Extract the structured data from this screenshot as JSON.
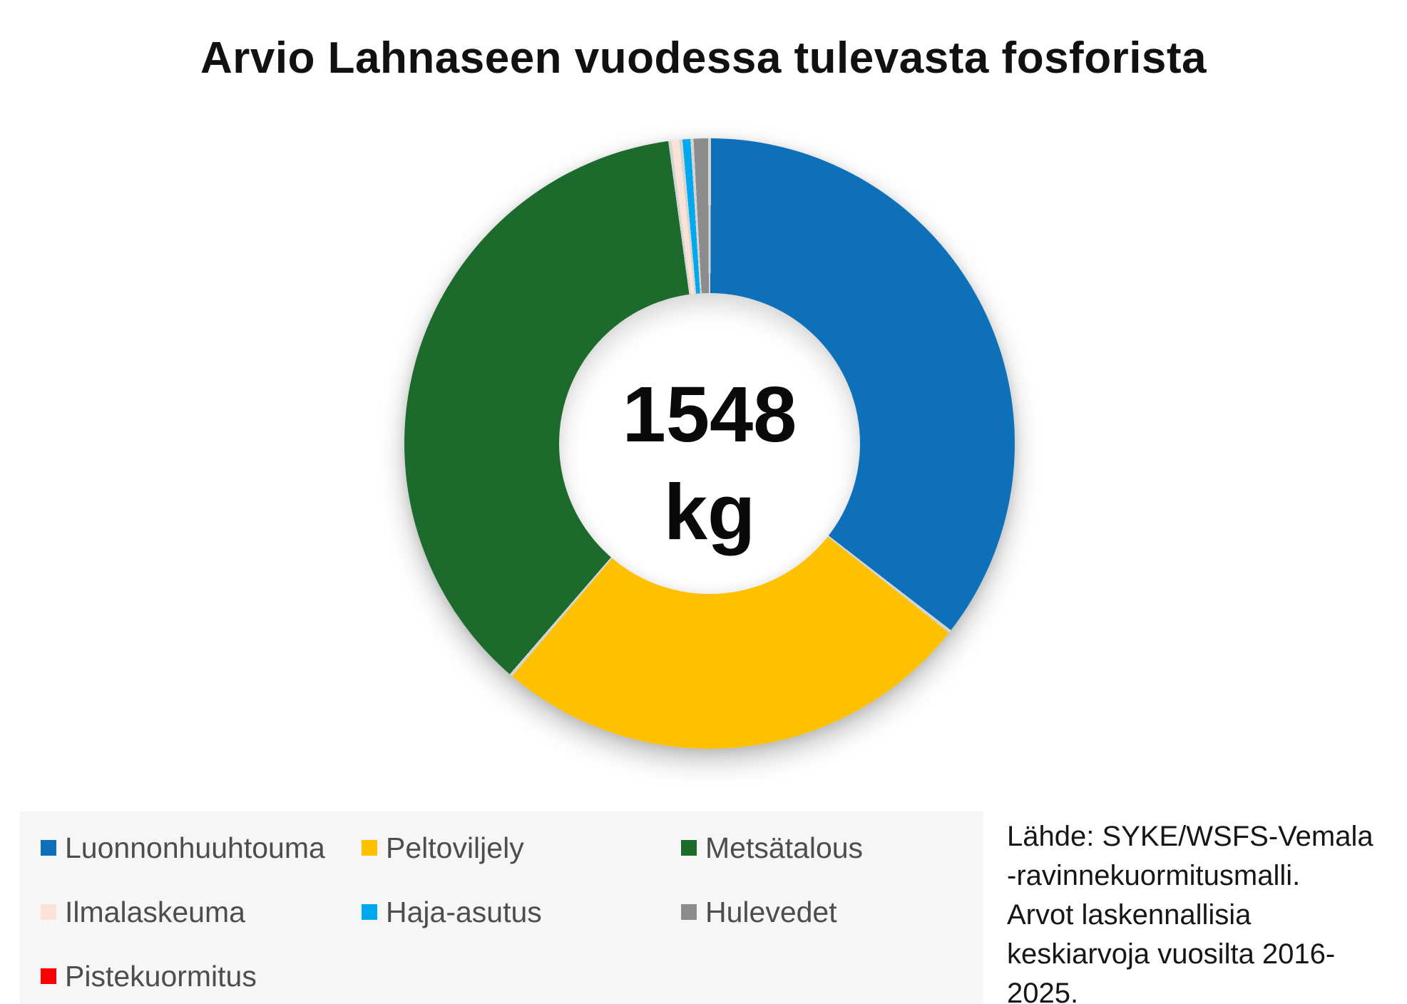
{
  "title": "Arvio Lahnaseen vuodessa tulevasta fosforista",
  "center_label": {
    "value": "1548",
    "unit": "kg"
  },
  "source_note": "Lähde: SYKE/WSFS-Vemala\n-ravinnekuormitusmalli.\nArvot laskennallisia\nkeskiarvoja vuosilta 2016-\n2025.",
  "chart_data": {
    "type": "pie",
    "subtype": "donut",
    "title": "Arvio Lahnaseen vuodessa tulevasta fosforista",
    "center_total": "1548 kg",
    "total_kg": 1548,
    "unit": "kg",
    "start_angle_deg": 0,
    "direction": "clockwise",
    "inner_radius_ratio": 0.49,
    "legend_position": "bottom",
    "divider_color": "#d4d4d4",
    "slices": [
      {
        "label": "Luonnonhuuhtouma",
        "color": "#0d70b8",
        "fraction": 0.3556,
        "value_kg": 550
      },
      {
        "label": "Peltoviljely",
        "color": "#fdc102",
        "fraction": 0.2572,
        "value_kg": 398
      },
      {
        "label": "Metsätalous",
        "color": "#1c6b2c",
        "fraction": 0.3664,
        "value_kg": 567
      },
      {
        "label": "Ilmalaskeuma",
        "color": "#fae3d6",
        "fraction": 0.0058,
        "value_kg": 9
      },
      {
        "label": "Haja-asutus",
        "color": "#00a9ee",
        "fraction": 0.0058,
        "value_kg": 9
      },
      {
        "label": "Hulevedet",
        "color": "#8c8c8c",
        "fraction": 0.0092,
        "value_kg": 14
      },
      {
        "label": "Pistekuormitus",
        "color": "#fb0000",
        "fraction": 0.0,
        "value_kg": 0
      }
    ]
  }
}
